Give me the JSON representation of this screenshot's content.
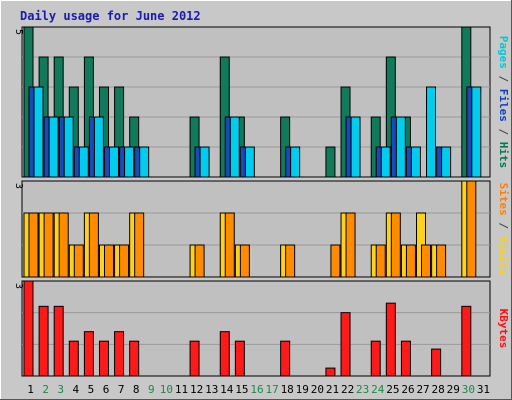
{
  "chart_data": {
    "type": "bar",
    "title": "Daily usage for June 2012",
    "categories": [
      "1",
      "2",
      "3",
      "4",
      "5",
      "6",
      "7",
      "8",
      "9",
      "10",
      "11",
      "12",
      "13",
      "14",
      "15",
      "16",
      "17",
      "18",
      "19",
      "20",
      "21",
      "22",
      "23",
      "24",
      "25",
      "26",
      "27",
      "28",
      "29",
      "30",
      "31"
    ],
    "weekend_days": [
      2,
      3,
      9,
      10,
      16,
      17,
      23,
      24,
      30
    ],
    "panels": [
      {
        "id": "hits_files_pages",
        "ylim": [
          0,
          5
        ],
        "ytick_label": "5",
        "right_label": [
          {
            "text": "Pages",
            "color": "#00c8d8"
          },
          {
            "text": " / ",
            "color": "#444444"
          },
          {
            "text": "Files",
            "color": "#1040c0"
          },
          {
            "text": " / ",
            "color": "#444444"
          },
          {
            "text": "Hits",
            "color": "#007a55"
          }
        ],
        "series": [
          {
            "name": "Hits",
            "color": "#107a5a",
            "values": [
              5,
              4,
              4,
              3,
              4,
              3,
              3,
              2,
              0,
              0,
              0,
              2,
              0,
              4,
              2,
              0,
              0,
              2,
              0,
              0,
              1,
              3,
              0,
              2,
              4,
              2,
              0,
              1,
              0,
              5,
              0
            ]
          },
          {
            "name": "Files",
            "color": "#1a4ab8",
            "values": [
              3,
              2,
              2,
              1,
              2,
              1,
              1,
              1,
              0,
              0,
              0,
              1,
              0,
              2,
              1,
              0,
              0,
              1,
              0,
              0,
              0,
              2,
              0,
              1,
              2,
              1,
              0,
              1,
              0,
              3,
              0
            ]
          },
          {
            "name": "Pages",
            "color": "#00ccee",
            "values": [
              3,
              2,
              2,
              1,
              2,
              1,
              1,
              1,
              0,
              0,
              0,
              1,
              0,
              2,
              1,
              0,
              0,
              1,
              0,
              0,
              0,
              2,
              0,
              1,
              2,
              1,
              3,
              1,
              0,
              3,
              0
            ]
          }
        ]
      },
      {
        "id": "visits_sites",
        "ylim": [
          0,
          3
        ],
        "ytick_label": "3",
        "right_label": [
          {
            "text": "Sites",
            "color": "#ff8000"
          },
          {
            "text": " / ",
            "color": "#444444"
          },
          {
            "text": "Visits",
            "color": "#ffd000"
          }
        ],
        "series": [
          {
            "name": "Visits",
            "color": "#ffd21a",
            "values": [
              2,
              2,
              2,
              1,
              2,
              1,
              1,
              2,
              0,
              0,
              0,
              1,
              0,
              2,
              1,
              0,
              0,
              1,
              0,
              0,
              0,
              2,
              0,
              1,
              2,
              1,
              2,
              1,
              0,
              3,
              0
            ]
          },
          {
            "name": "Sites",
            "color": "#ff8c00",
            "values": [
              2,
              2,
              2,
              1,
              2,
              1,
              1,
              2,
              0,
              0,
              0,
              1,
              0,
              2,
              1,
              0,
              0,
              1,
              0,
              0,
              1,
              2,
              0,
              1,
              2,
              1,
              1,
              1,
              0,
              3,
              0
            ]
          }
        ]
      },
      {
        "id": "kbytes",
        "ylim": [
          0,
          3
        ],
        "ytick_label": "3",
        "right_label": [
          {
            "text": "KBytes",
            "color": "#ff1010"
          }
        ],
        "series": [
          {
            "name": "KBytes",
            "color": "#ff1a1a",
            "values": [
              3,
              2.2,
              2.2,
              1.1,
              1.4,
              1.1,
              1.4,
              1.1,
              0,
              0,
              0,
              1.1,
              0,
              1.4,
              1.1,
              0,
              0,
              1.1,
              0,
              0,
              0.25,
              2.0,
              0,
              1.1,
              2.3,
              1.1,
              0,
              0.85,
              0,
              2.2,
              0
            ]
          }
        ]
      }
    ]
  },
  "colors": {
    "outer_bg": "#c8c8c8",
    "plot_bg": "#c0c0c0",
    "grid": "#9a9a9a",
    "weekday_tick": "#000000",
    "weekend_tick": "#1a8a4a"
  }
}
